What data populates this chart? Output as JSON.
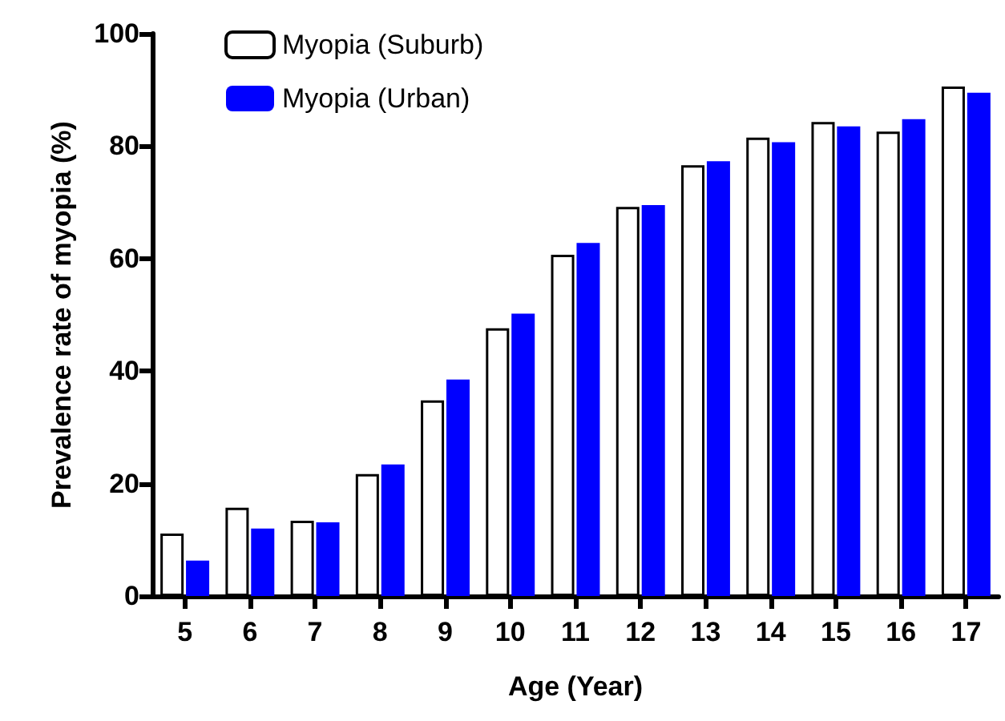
{
  "chart_data": {
    "type": "bar",
    "xlabel": "Age (Year)",
    "ylabel": "Prevalence rate of myopia (%)",
    "categories": [
      "5",
      "6",
      "7",
      "8",
      "9",
      "10",
      "11",
      "12",
      "13",
      "14",
      "15",
      "16",
      "17"
    ],
    "series": [
      {
        "name": "Myopia (Suburb)",
        "color": "#ffffff",
        "values": [
          11.1,
          15.7,
          13.4,
          21.7,
          34.8,
          47.6,
          60.7,
          69.2,
          76.6,
          81.5,
          84.3,
          82.6,
          90.6
        ]
      },
      {
        "name": "Myopia (Urban)",
        "color": "#0000ff",
        "values": [
          6.3,
          12,
          13.1,
          23.4,
          38.5,
          50.2,
          62.8,
          69.5,
          77.3,
          80.7,
          83.5,
          84.8,
          89.5
        ]
      }
    ],
    "ylim": [
      0,
      100
    ],
    "yticks": [
      0,
      20,
      40,
      60,
      80,
      100
    ],
    "grid": false,
    "legend": "top left"
  }
}
